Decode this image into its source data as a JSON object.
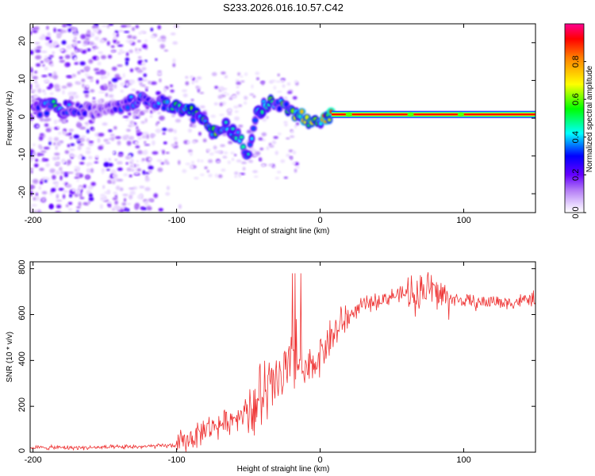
{
  "title": "S233.2026.016.10.57.C42",
  "chart_data": [
    {
      "type": "heatmap",
      "name": "spectrogram",
      "xlabel": "Height of straight line (km)",
      "ylabel": "Frequency (Hz)",
      "xlim": [
        -202,
        150
      ],
      "ylim": [
        -25,
        25
      ],
      "xticks": [
        -200,
        -100,
        0,
        100
      ],
      "xtick_labels": [
        "-200",
        "-100",
        "0",
        "100"
      ],
      "yticks": [
        -20,
        -10,
        0,
        10,
        20
      ],
      "ytick_labels": [
        "-20",
        "-10",
        "0",
        "10",
        "20"
      ],
      "colorbar": {
        "label": "Normalized spectral amplitude",
        "range": [
          0,
          1
        ],
        "ticks": [
          0.0,
          0.2,
          0.4,
          0.6,
          0.8
        ],
        "tick_labels": [
          "0.0",
          "0.2",
          "0.4",
          "0.6",
          "0.8"
        ]
      },
      "ridge": [
        {
          "x": -200,
          "y": 2,
          "a": 0.2
        },
        {
          "x": -185,
          "y": 3,
          "a": 0.5
        },
        {
          "x": -165,
          "y": 2,
          "a": 0.25
        },
        {
          "x": -150,
          "y": 2,
          "a": 0.2
        },
        {
          "x": -125,
          "y": 5,
          "a": 0.4
        },
        {
          "x": -110,
          "y": 4,
          "a": 0.45
        },
        {
          "x": -95,
          "y": 3,
          "a": 0.5
        },
        {
          "x": -85,
          "y": 0,
          "a": 0.55
        },
        {
          "x": -75,
          "y": -3,
          "a": 0.55
        },
        {
          "x": -65,
          "y": -2,
          "a": 0.5
        },
        {
          "x": -55,
          "y": -6,
          "a": 0.5
        },
        {
          "x": -50,
          "y": -10,
          "a": 0.45
        },
        {
          "x": -45,
          "y": 1,
          "a": 0.4
        },
        {
          "x": -38,
          "y": 4,
          "a": 0.5
        },
        {
          "x": -25,
          "y": 3,
          "a": 0.55
        },
        {
          "x": -15,
          "y": 1,
          "a": 0.6
        },
        {
          "x": -8,
          "y": -1,
          "a": 0.85
        },
        {
          "x": 0,
          "y": 0,
          "a": 0.7
        },
        {
          "x": 10,
          "y": 1,
          "a": 0.95
        },
        {
          "x": 50,
          "y": 1,
          "a": 0.95
        },
        {
          "x": 100,
          "y": 1,
          "a": 0.95
        },
        {
          "x": 150,
          "y": 1,
          "a": 0.95
        }
      ]
    },
    {
      "type": "line",
      "name": "snr",
      "xlabel": "Height of straight line (km)",
      "ylabel": "SNR (10 * v/v)",
      "xlim": [
        -202,
        150
      ],
      "ylim": [
        0,
        830
      ],
      "xticks": [
        -200,
        -100,
        0,
        100
      ],
      "xtick_labels": [
        "-200",
        "-100",
        "0",
        "100"
      ],
      "yticks": [
        0,
        200,
        400,
        600,
        800
      ],
      "ytick_labels": [
        "0",
        "200",
        "400",
        "600",
        "800"
      ],
      "series": [
        {
          "name": "SNR",
          "color": "#ee3333",
          "x": [
            -202,
            -180,
            -160,
            -140,
            -120,
            -100,
            -95,
            -90,
            -85,
            -80,
            -75,
            -70,
            -65,
            -60,
            -55,
            -50,
            -45,
            -40,
            -35,
            -30,
            -25,
            -20,
            -18,
            -15,
            -12,
            -10,
            -5,
            0,
            5,
            10,
            15,
            20,
            25,
            30,
            40,
            50,
            60,
            70,
            75,
            80,
            85,
            90,
            100,
            110,
            120,
            130,
            140,
            150
          ],
          "values": [
            20,
            20,
            20,
            22,
            25,
            30,
            45,
            60,
            80,
            100,
            110,
            120,
            130,
            150,
            170,
            190,
            210,
            240,
            270,
            300,
            330,
            360,
            420,
            380,
            350,
            340,
            380,
            430,
            480,
            520,
            560,
            590,
            620,
            640,
            660,
            680,
            690,
            700,
            720,
            700,
            680,
            670,
            660,
            650,
            660,
            650,
            660,
            670
          ]
        }
      ]
    }
  ]
}
